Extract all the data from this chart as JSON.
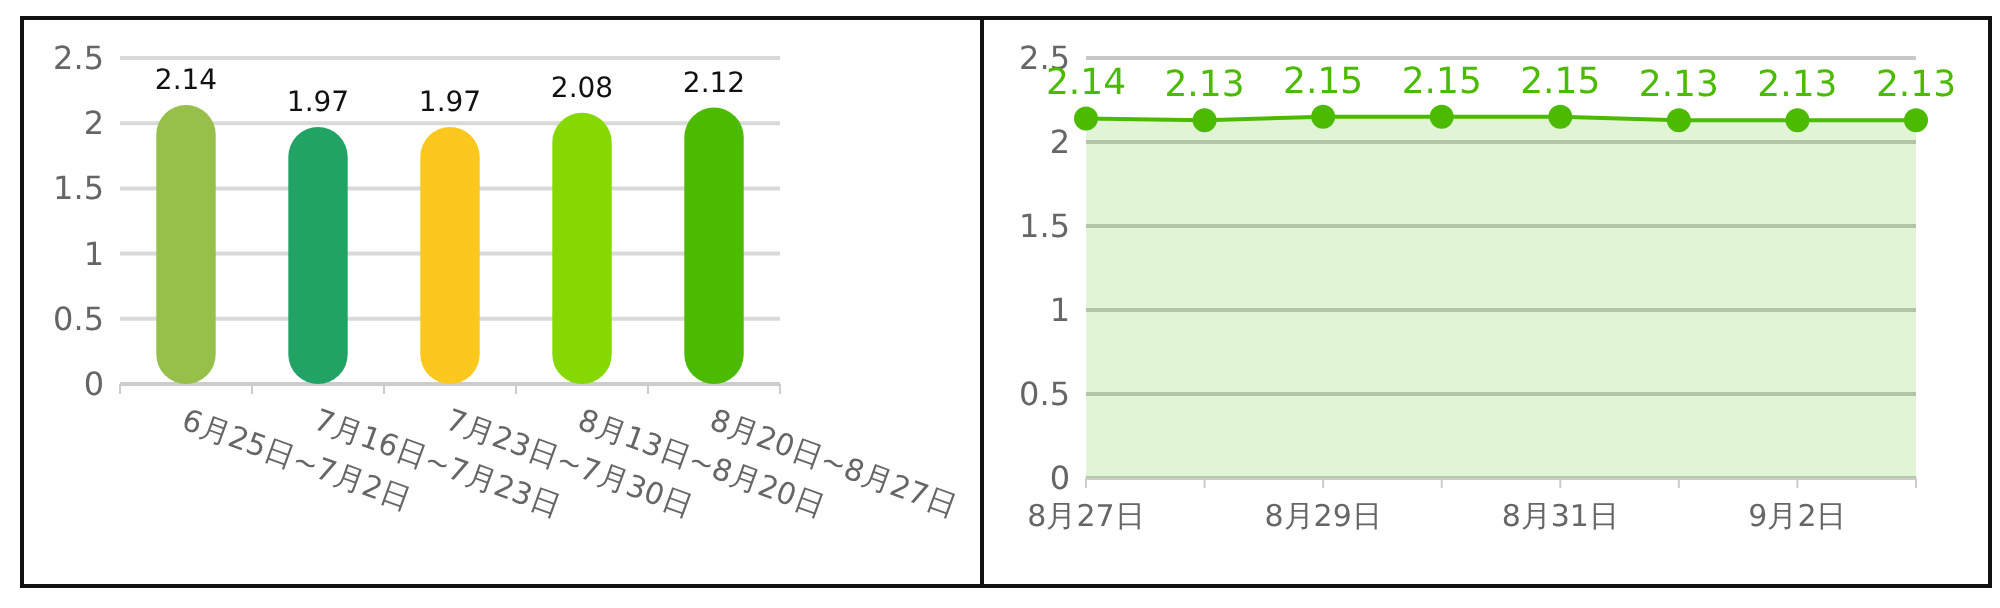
{
  "chart_data": [
    {
      "type": "bar",
      "categories": [
        "6月25日~7月2日",
        "7月16日~7月23日",
        "7月23日~7月30日",
        "8月13日~8月20日",
        "8月20日~8月27日"
      ],
      "values": [
        2.14,
        1.97,
        1.97,
        2.08,
        2.12
      ],
      "colors": [
        "#96c04a",
        "#22a366",
        "#fdc81d",
        "#86d900",
        "#4cbb00"
      ],
      "ylim": [
        0,
        2.5
      ],
      "yticks": [
        0,
        0.5,
        1,
        1.5,
        2,
        2.5
      ],
      "grid": "y",
      "data_labels": true
    },
    {
      "type": "area",
      "categories": [
        "8月27日",
        null,
        "8月29日",
        null,
        "8月31日",
        null,
        "9月2日",
        null
      ],
      "series": [
        {
          "color": "#4cbb00",
          "values": [
            2.14,
            2.13,
            2.15,
            2.15,
            2.15,
            2.13,
            2.13,
            2.13
          ]
        }
      ],
      "ylim": [
        0,
        2.5
      ],
      "yticks": [
        0,
        0.5,
        1,
        1.5,
        2,
        2.5
      ],
      "grid": "y",
      "marker": "circle",
      "data_labels": true
    }
  ]
}
